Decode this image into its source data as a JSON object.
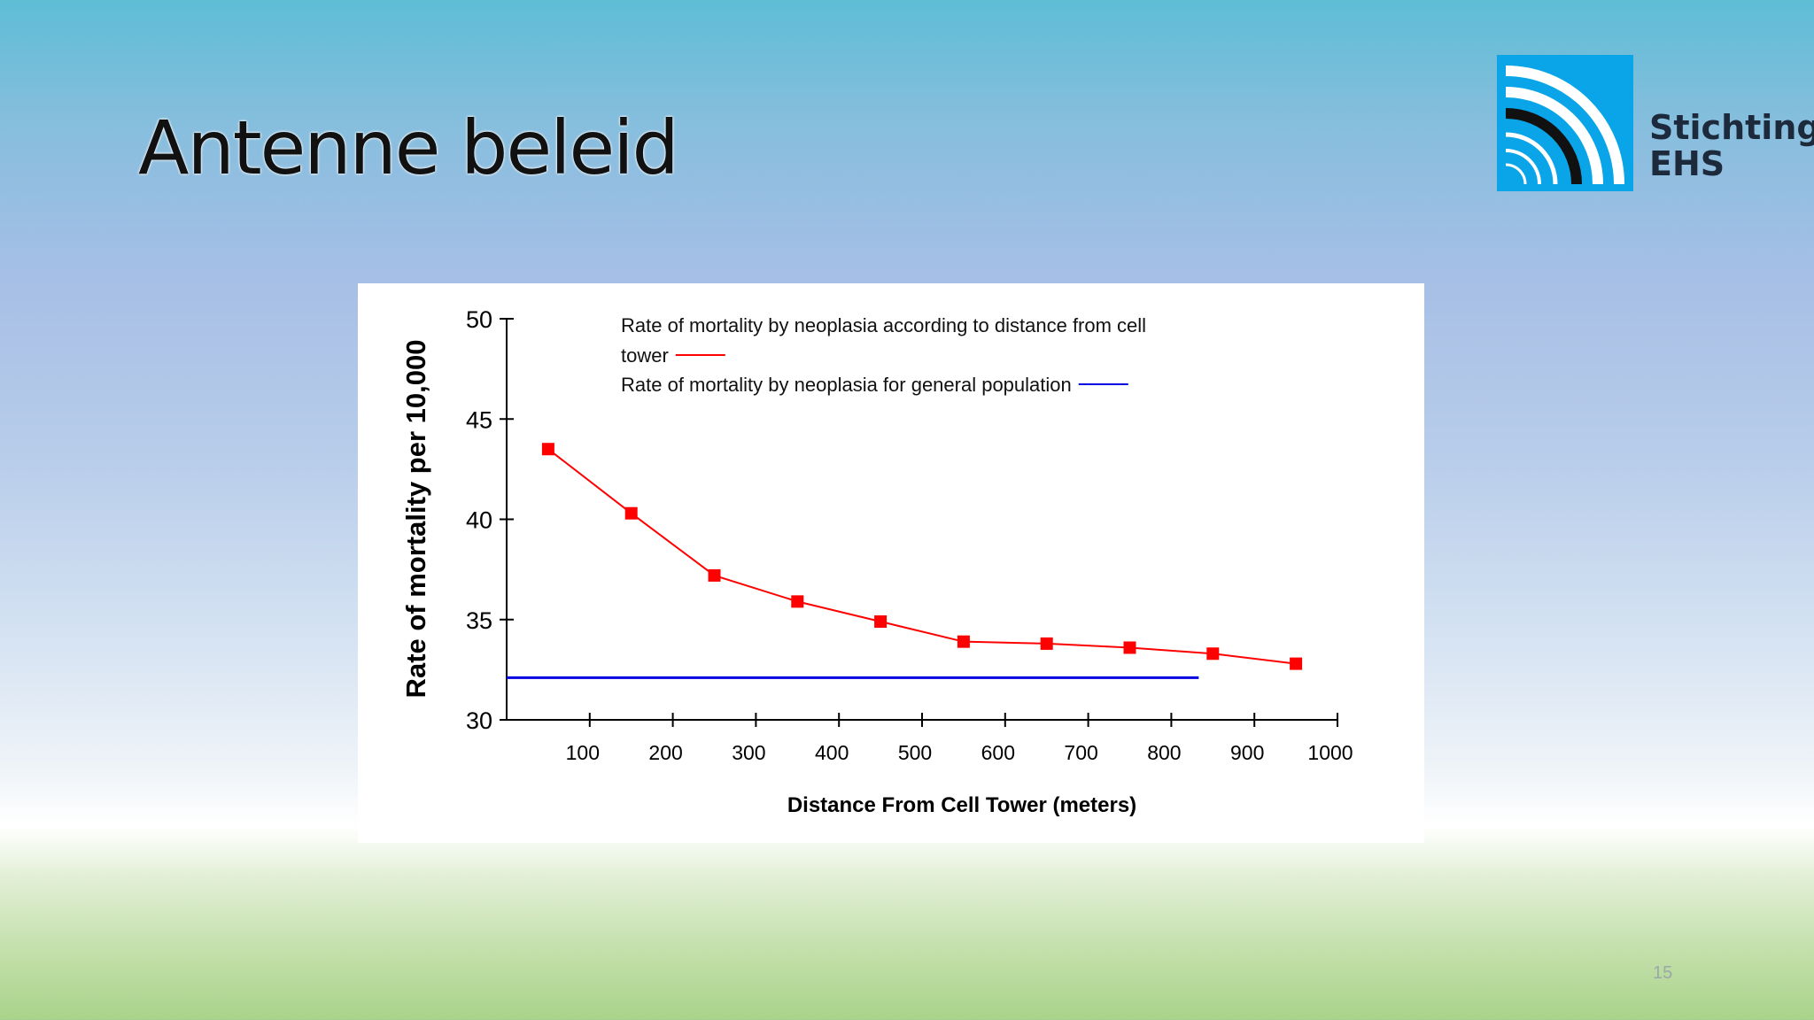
{
  "slide": {
    "title": "Antenne beleid",
    "page_number": "15"
  },
  "logo": {
    "line1": "Stichting",
    "line2": "EHS",
    "brand_color": "#0aa5e8"
  },
  "chart_data": {
    "type": "line",
    "xlabel": "Distance From Cell Tower (meters)",
    "ylabel": "Rate of mortality per 10,000",
    "xlim": [
      0,
      1000
    ],
    "ylim": [
      30,
      50
    ],
    "x_ticks": [
      100,
      200,
      300,
      400,
      500,
      600,
      700,
      800,
      900,
      1000
    ],
    "y_ticks": [
      30,
      35,
      40,
      45,
      50
    ],
    "grid": false,
    "legend_position": "top",
    "series": [
      {
        "name": "Rate of mortality by neoplasia according to distance from cell tower",
        "legend_line1": "Rate of mortality by neoplasia according to distance from cell",
        "legend_line2": "tower",
        "color": "#ff0000",
        "marker": "square",
        "x": [
          50,
          150,
          250,
          350,
          450,
          550,
          650,
          750,
          850,
          950
        ],
        "y": [
          43.5,
          40.3,
          37.2,
          35.9,
          34.9,
          33.9,
          33.8,
          33.6,
          33.3,
          32.8
        ]
      },
      {
        "name": "Rate of mortality by neoplasia for general population",
        "color": "#0000e0",
        "marker": "none",
        "x": [
          0,
          833
        ],
        "y": [
          32.1,
          32.1
        ]
      }
    ]
  }
}
